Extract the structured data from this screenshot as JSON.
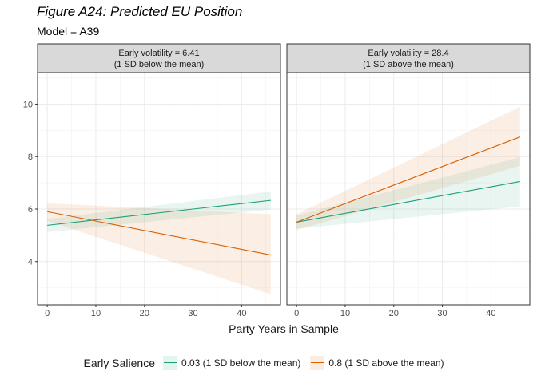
{
  "title": "Figure A24: Predicted EU Position",
  "subtitle": "Model = A39",
  "chart_data": {
    "type": "line",
    "xlabel": "Party Years in Sample",
    "ylabel": "",
    "xlim": [
      -2,
      48
    ],
    "ylim": [
      2.35,
      11.2
    ],
    "xticks": [
      0,
      10,
      20,
      30,
      40
    ],
    "yticks": [
      4,
      6,
      8,
      10
    ],
    "grid": true,
    "legend_position": "bottom",
    "legend_title": "Early Salience",
    "series_colors": [
      "#1b9e77",
      "#d95f02"
    ],
    "series_names": [
      "0.03 (1 SD below the mean)",
      "0.8 (1 SD above the mean)"
    ],
    "panels": [
      {
        "strip_line1": "Early volatility = 6.41",
        "strip_line2": "(1 SD below the mean)",
        "series": [
          {
            "name": "0.03 (1 SD below the mean)",
            "x": [
              0,
              46
            ],
            "y": [
              5.38,
              6.33
            ],
            "lower": [
              5.12,
              5.98
            ],
            "upper": [
              5.62,
              6.67
            ]
          },
          {
            "name": "0.8 (1 SD above the mean)",
            "x": [
              0,
              46
            ],
            "y": [
              5.9,
              4.25
            ],
            "lower": [
              5.55,
              2.75
            ],
            "upper": [
              6.22,
              5.8
            ]
          }
        ]
      },
      {
        "strip_line1": "Early volatility = 28.4",
        "strip_line2": "(1 SD above the mean)",
        "series": [
          {
            "name": "0.03 (1 SD below the mean)",
            "x": [
              0,
              46
            ],
            "y": [
              5.5,
              7.05
            ],
            "lower": [
              5.25,
              6.1
            ],
            "upper": [
              5.75,
              7.98
            ]
          },
          {
            "name": "0.8 (1 SD above the mean)",
            "x": [
              0,
              46
            ],
            "y": [
              5.5,
              8.75
            ],
            "lower": [
              5.2,
              7.65
            ],
            "upper": [
              5.8,
              9.9
            ]
          }
        ]
      }
    ]
  }
}
